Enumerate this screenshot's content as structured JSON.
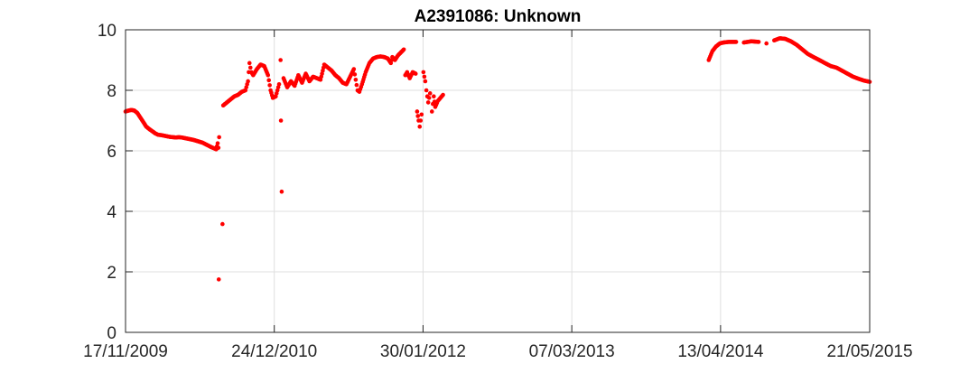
{
  "chart_data": {
    "type": "scatter",
    "title": "A2391086: Unknown",
    "xlabel": "",
    "ylabel": "",
    "x_axis_kind": "date",
    "xlim": [
      "2009-11-17",
      "2015-05-21"
    ],
    "ylim": [
      0,
      10
    ],
    "x_ticks": [
      "2009-11-17",
      "2010-12-24",
      "2012-01-30",
      "2013-03-07",
      "2014-04-13",
      "2015-05-21"
    ],
    "x_tick_labels": [
      "17/11/2009",
      "24/12/2010",
      "30/01/2012",
      "07/03/2013",
      "13/04/2014",
      "21/05/2015"
    ],
    "y_ticks": [
      0,
      2,
      4,
      6,
      8,
      10
    ],
    "y_tick_labels": [
      "0",
      "2",
      "4",
      "6",
      "8",
      "10"
    ],
    "grid": true,
    "marker_color": "#ff0000",
    "series": [
      {
        "points": [
          [
            "2009-11-17",
            7.3
          ],
          [
            "2009-11-25",
            7.33
          ],
          [
            "2009-12-03",
            7.35
          ],
          [
            "2009-12-11",
            7.33
          ],
          [
            "2009-12-19",
            7.25
          ],
          [
            "2009-12-27",
            7.1
          ],
          [
            "2010-01-04",
            6.95
          ],
          [
            "2010-01-12",
            6.8
          ],
          [
            "2010-01-20",
            6.72
          ],
          [
            "2010-01-28",
            6.65
          ],
          [
            "2010-02-05",
            6.58
          ],
          [
            "2010-02-13",
            6.53
          ],
          [
            "2010-02-21",
            6.52
          ],
          [
            "2010-03-01",
            6.5
          ],
          [
            "2010-03-09",
            6.48
          ],
          [
            "2010-03-17",
            6.46
          ],
          [
            "2010-03-25",
            6.45
          ],
          [
            "2010-04-02",
            6.44
          ],
          [
            "2010-04-10",
            6.45
          ],
          [
            "2010-04-18",
            6.44
          ],
          [
            "2010-04-26",
            6.42
          ],
          [
            "2010-05-04",
            6.4
          ],
          [
            "2010-05-12",
            6.38
          ],
          [
            "2010-05-20",
            6.36
          ],
          [
            "2010-05-28",
            6.33
          ],
          [
            "2010-06-05",
            6.3
          ],
          [
            "2010-06-13",
            6.27
          ],
          [
            "2010-06-21",
            6.22
          ],
          [
            "2010-06-29",
            6.17
          ],
          [
            "2010-07-07",
            6.12
          ],
          [
            "2010-07-15",
            6.08
          ],
          [
            "2010-07-20",
            6.05
          ],
          [
            "2010-07-24",
            6.25
          ],
          [
            "2010-07-26",
            6.1
          ],
          [
            "2010-07-28",
            6.45
          ],
          [
            "2010-07-27",
            1.75
          ],
          [
            "2010-08-06",
            3.58
          ],
          [
            "2010-08-08",
            7.5
          ],
          [
            "2010-08-18",
            7.6
          ],
          [
            "2010-08-28",
            7.7
          ],
          [
            "2010-09-07",
            7.8
          ],
          [
            "2010-09-17",
            7.85
          ],
          [
            "2010-09-27",
            7.95
          ],
          [
            "2010-10-07",
            8.0
          ],
          [
            "2010-10-14",
            8.3
          ],
          [
            "2010-10-18",
            8.9
          ],
          [
            "2010-10-23",
            8.6
          ],
          [
            "2010-10-28",
            8.5
          ],
          [
            "2010-11-07",
            8.7
          ],
          [
            "2010-11-17",
            8.85
          ],
          [
            "2010-11-27",
            8.8
          ],
          [
            "2010-12-07",
            8.5
          ],
          [
            "2010-12-14",
            8.0
          ],
          [
            "2010-12-20",
            7.75
          ],
          [
            "2010-12-28",
            7.8
          ],
          [
            "2011-01-06",
            8.2
          ],
          [
            "2011-01-10",
            9.0
          ],
          [
            "2011-01-11",
            7.0
          ],
          [
            "2011-01-13",
            4.65
          ],
          [
            "2011-01-18",
            8.4
          ],
          [
            "2011-01-28",
            8.1
          ],
          [
            "2011-02-07",
            8.3
          ],
          [
            "2011-02-17",
            8.15
          ],
          [
            "2011-02-27",
            8.5
          ],
          [
            "2011-03-09",
            8.25
          ],
          [
            "2011-03-19",
            8.55
          ],
          [
            "2011-03-29",
            8.3
          ],
          [
            "2011-04-08",
            8.45
          ],
          [
            "2011-04-18",
            8.4
          ],
          [
            "2011-04-28",
            8.35
          ],
          [
            "2011-05-08",
            8.85
          ],
          [
            "2011-05-18",
            8.75
          ],
          [
            "2011-05-28",
            8.65
          ],
          [
            "2011-06-07",
            8.5
          ],
          [
            "2011-06-17",
            8.4
          ],
          [
            "2011-06-27",
            8.25
          ],
          [
            "2011-07-07",
            8.2
          ],
          [
            "2011-07-17",
            8.45
          ],
          [
            "2011-07-27",
            8.7
          ],
          [
            "2011-08-01",
            8.35
          ],
          [
            "2011-08-06",
            8.0
          ],
          [
            "2011-08-11",
            7.95
          ],
          [
            "2011-08-18",
            8.2
          ],
          [
            "2011-08-28",
            8.6
          ],
          [
            "2011-09-07",
            8.9
          ],
          [
            "2011-09-17",
            9.05
          ],
          [
            "2011-09-27",
            9.1
          ],
          [
            "2011-10-07",
            9.12
          ],
          [
            "2011-10-17",
            9.1
          ],
          [
            "2011-10-27",
            9.05
          ],
          [
            "2011-11-04",
            8.9
          ],
          [
            "2011-11-08",
            9.1
          ],
          [
            "2011-11-15",
            9.0
          ],
          [
            "2011-11-23",
            9.15
          ],
          [
            "2011-12-01",
            9.25
          ],
          [
            "2011-12-09",
            9.35
          ],
          [
            "2011-12-13",
            8.5
          ],
          [
            "2011-12-18",
            8.6
          ],
          [
            "2011-12-25",
            8.4
          ],
          [
            "2012-01-02",
            8.6
          ],
          [
            "2012-01-10",
            8.55
          ],
          [
            "2012-01-14",
            7.3
          ],
          [
            "2012-01-18",
            7.0
          ],
          [
            "2012-01-21",
            6.8
          ],
          [
            "2012-01-26",
            7.2
          ],
          [
            "2012-01-31",
            8.6
          ],
          [
            "2012-02-05",
            8.3
          ],
          [
            "2012-02-08",
            8.0
          ],
          [
            "2012-02-13",
            7.6
          ],
          [
            "2012-02-18",
            7.9
          ],
          [
            "2012-02-23",
            7.3
          ],
          [
            "2012-02-28",
            7.8
          ],
          [
            "2012-03-03",
            7.45
          ],
          [
            "2012-03-10",
            7.65
          ],
          [
            "2012-03-17",
            7.75
          ],
          [
            "2012-03-24",
            7.85
          ],
          [
            "2014-03-12",
            9.0
          ],
          [
            "2014-03-22",
            9.3
          ],
          [
            "2014-04-01",
            9.45
          ],
          [
            "2014-04-11",
            9.55
          ],
          [
            "2014-04-21",
            9.58
          ],
          [
            "2014-05-05",
            9.6
          ],
          [
            "2014-05-25",
            9.6
          ],
          [
            "2014-06-15",
            9.58
          ],
          [
            "2014-07-05",
            9.62
          ],
          [
            "2014-07-25",
            9.6
          ],
          [
            "2014-08-15",
            9.55
          ],
          [
            "2014-09-05",
            9.65
          ],
          [
            "2014-09-20",
            9.72
          ],
          [
            "2014-10-05",
            9.7
          ],
          [
            "2014-10-20",
            9.62
          ],
          [
            "2014-11-05",
            9.5
          ],
          [
            "2014-11-20",
            9.35
          ],
          [
            "2014-12-05",
            9.2
          ],
          [
            "2014-12-20",
            9.1
          ],
          [
            "2015-01-05",
            9.0
          ],
          [
            "2015-01-20",
            8.9
          ],
          [
            "2015-02-05",
            8.8
          ],
          [
            "2015-02-20",
            8.75
          ],
          [
            "2015-03-07",
            8.65
          ],
          [
            "2015-03-22",
            8.55
          ],
          [
            "2015-04-06",
            8.45
          ],
          [
            "2015-04-21",
            8.38
          ],
          [
            "2015-05-06",
            8.32
          ],
          [
            "2015-05-21",
            8.28
          ]
        ]
      }
    ]
  }
}
